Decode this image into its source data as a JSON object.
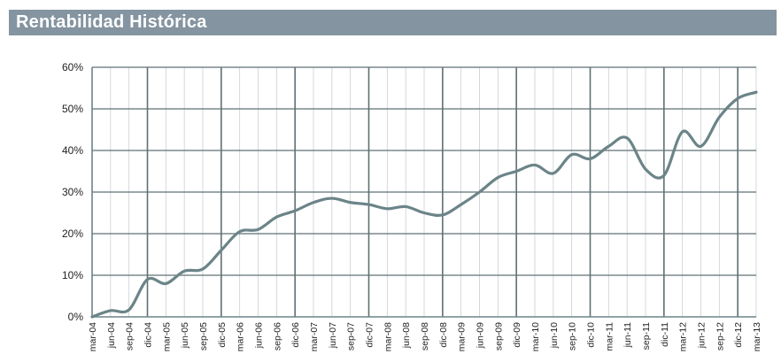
{
  "header": {
    "title": "Rentabilidad Histórica"
  },
  "colors": {
    "header_bg": "#8494a0",
    "line": "#6b8488",
    "grid": "#c9cfd2",
    "major_grid": "#5f7073",
    "axis": "#6b8488"
  },
  "chart_data": {
    "type": "line",
    "title": "Rentabilidad Histórica",
    "xlabel": "",
    "ylabel": "",
    "ylim": [
      0,
      60
    ],
    "y_ticks": [
      "0%",
      "10%",
      "20%",
      "30%",
      "40%",
      "50%",
      "60%"
    ],
    "y_tick_values": [
      0,
      10,
      20,
      30,
      40,
      50,
      60
    ],
    "x_ticks": [
      "mar-04",
      "jun-04",
      "sep-04",
      "dic-04",
      "mar-05",
      "jun-05",
      "sep-05",
      "dic-05",
      "mar-06",
      "jun-06",
      "sep-06",
      "dic-06",
      "mar-07",
      "jun-07",
      "sep-07",
      "dic-07",
      "mar-08",
      "jun-08",
      "sep-08",
      "dic-08",
      "mar-09",
      "jun-09",
      "sep-09",
      "dic-09",
      "mar-10",
      "jun-10",
      "sep-10",
      "dic-10",
      "mar-11",
      "jun-11",
      "sep-11",
      "dic-11",
      "mar-12",
      "jun-12",
      "sep-12",
      "dic-12",
      "mar-13"
    ],
    "major_grid_every": 4,
    "grid": true,
    "legend": "none",
    "series": [
      {
        "values": [
          0.0,
          1.5,
          1.7,
          9.0,
          8.0,
          11.0,
          11.5,
          16.0,
          20.5,
          21.0,
          24.0,
          25.5,
          27.5,
          28.5,
          27.5,
          27.0,
          26.0,
          26.5,
          25.0,
          24.5,
          27.0,
          30.0,
          33.5,
          35.0,
          36.5,
          34.5,
          39.0,
          38.0,
          41.0,
          43.0,
          35.5,
          34.0,
          44.5,
          41.0,
          48.0,
          52.5,
          54.0
        ]
      }
    ]
  }
}
